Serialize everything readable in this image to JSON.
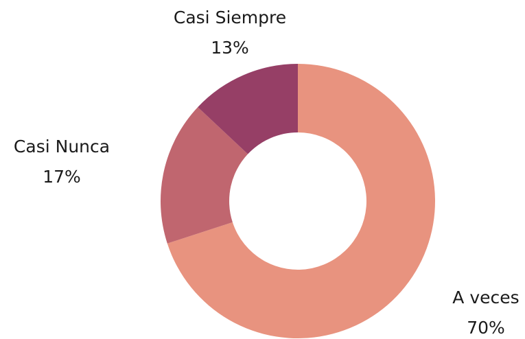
{
  "chart_data": {
    "type": "donut",
    "categories": [
      "A veces",
      "Casi Nunca",
      "Casi Siempre"
    ],
    "values": [
      70,
      17,
      13
    ],
    "value_labels": [
      "70%",
      "17%",
      "13%"
    ],
    "colors": [
      "#e8937f",
      "#c0666f",
      "#963f66"
    ]
  }
}
